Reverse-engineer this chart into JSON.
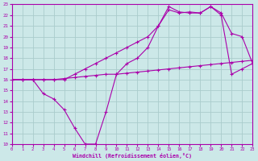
{
  "xlabel": "Windchill (Refroidissement éolien,°C)",
  "bg_color": "#cce8e8",
  "grid_color": "#aacccc",
  "line_color": "#aa00aa",
  "xmin": 0,
  "xmax": 23,
  "ymin": 10,
  "ymax": 23,
  "xticks": [
    0,
    1,
    2,
    3,
    4,
    5,
    6,
    7,
    8,
    9,
    10,
    11,
    12,
    13,
    14,
    15,
    16,
    17,
    18,
    19,
    20,
    21,
    22,
    23
  ],
  "yticks": [
    10,
    11,
    12,
    13,
    14,
    15,
    16,
    17,
    18,
    19,
    20,
    21,
    22,
    23
  ],
  "line1_x": [
    0,
    1,
    2,
    3,
    4,
    5,
    6,
    7,
    8,
    9,
    10,
    11,
    12,
    13,
    14,
    15,
    16,
    17,
    18,
    19,
    20,
    21,
    22,
    23
  ],
  "line1_y": [
    16.0,
    16.0,
    16.0,
    16.0,
    16.0,
    16.1,
    16.2,
    16.3,
    16.4,
    16.5,
    16.5,
    16.6,
    16.7,
    16.8,
    16.9,
    17.0,
    17.1,
    17.2,
    17.3,
    17.4,
    17.5,
    17.6,
    17.7,
    17.8
  ],
  "line2_x": [
    0,
    1,
    2,
    3,
    4,
    5,
    6,
    7,
    8,
    9,
    10,
    11,
    12,
    13,
    14,
    15,
    16,
    17,
    18,
    19,
    20,
    21,
    22,
    23
  ],
  "line2_y": [
    16.0,
    16.0,
    16.0,
    16.0,
    16.0,
    16.0,
    16.5,
    17.0,
    17.5,
    18.0,
    18.5,
    19.0,
    19.5,
    20.0,
    21.0,
    22.5,
    22.2,
    22.3,
    22.2,
    22.8,
    22.2,
    20.3,
    20.0,
    17.5
  ],
  "line3_x": [
    0,
    1,
    2,
    3,
    4,
    5,
    6,
    7,
    8,
    9,
    10,
    11,
    12,
    13,
    14,
    15,
    16,
    17,
    18,
    19,
    20,
    21,
    22,
    23
  ],
  "line3_y": [
    16.0,
    16.0,
    16.0,
    14.7,
    14.2,
    13.2,
    11.5,
    10.0,
    10.0,
    13.0,
    16.5,
    17.5,
    18.0,
    19.0,
    21.0,
    22.8,
    22.3,
    22.2,
    22.2,
    22.8,
    22.0,
    16.5,
    17.0,
    17.5
  ]
}
